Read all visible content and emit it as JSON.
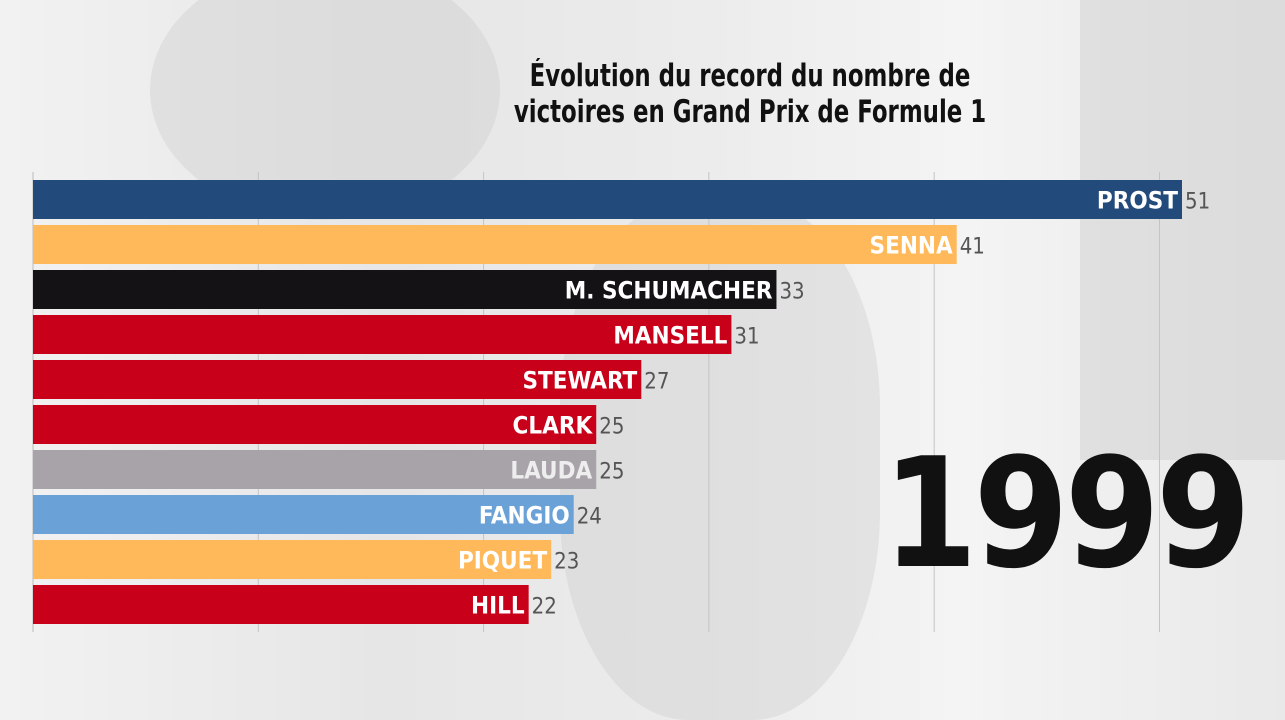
{
  "chart_data": {
    "type": "bar",
    "orientation": "horizontal",
    "title": "Évolution du record du nombre de victoires en Grand Prix de Formule 1",
    "title_lines": [
      "Évolution du record du nombre de",
      "victoires en Grand Prix de Formule 1"
    ],
    "year": "1999",
    "categories": [
      "PROST",
      "SENNA",
      "M. SCHUMACHER",
      "MANSELL",
      "STEWART",
      "CLARK",
      "LAUDA",
      "FANGIO",
      "PIQUET",
      "HILL"
    ],
    "values": [
      51,
      41,
      33,
      31,
      27,
      25,
      25,
      24,
      23,
      22
    ],
    "colors": [
      "#224a7a",
      "#ffb95a",
      "#141214",
      "#c8001a",
      "#c8001a",
      "#c8001a",
      "#a8a3a8",
      "#6aa2d8",
      "#ffb95a",
      "#c8001a"
    ],
    "label_colors": [
      "#ffffff",
      "#ffffff",
      "#ffffff",
      "#ffffff",
      "#ffffff",
      "#ffffff",
      "#eeeeee",
      "#ffffff",
      "#ffffff",
      "#ffffff"
    ],
    "xlim": [
      0,
      51
    ],
    "gridlines": [
      10,
      20,
      30,
      40,
      50
    ],
    "grid": true,
    "axis_tick_labels_shown": false
  }
}
